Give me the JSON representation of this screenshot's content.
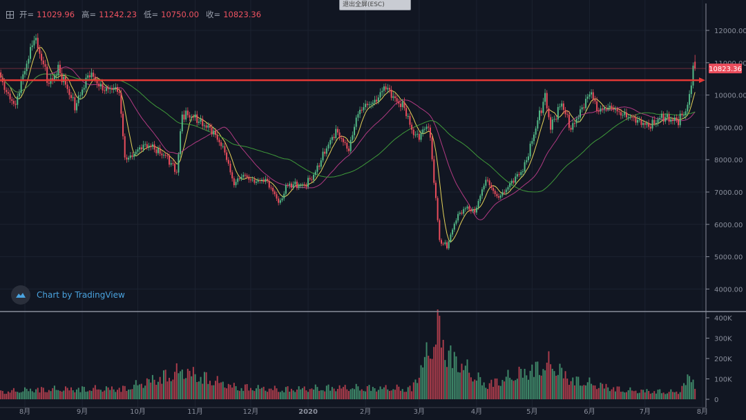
{
  "header": {
    "toggle_icon": "plus-square-icon",
    "open_label": "开=",
    "open": "11029.96",
    "high_label": "高=",
    "high": "11242.23",
    "low_label": "低=",
    "low": "10750.00",
    "close_label": "收=",
    "close": "10823.36",
    "exit_fullscreen": "退出全屏(ESC)"
  },
  "watermark": {
    "text": "Chart by TradingView",
    "icon": "tradingview-cloud-icon"
  },
  "colors": {
    "background": "#111622",
    "up": "#53b987",
    "down": "#eb4d5c",
    "ma_fast": "#e6d35a",
    "ma_mid": "#b23a83",
    "ma_slow": "#3f9a3a",
    "marker_line": "#e53935"
  },
  "chart_data": {
    "type": "candlestick",
    "price_axis": {
      "ticks": [
        "12000.00",
        "11000.00",
        "10000.00",
        "9000.00",
        "8000.00",
        "7000.00",
        "6000.00",
        "5000.00",
        "4000.00"
      ],
      "range": [
        3700,
        12300
      ]
    },
    "volume_axis": {
      "ticks": [
        "400K",
        "300K",
        "200K",
        "100K",
        "0"
      ],
      "range": [
        0,
        400000
      ]
    },
    "time_axis": {
      "ticks": [
        "8月",
        "9月",
        "10月",
        "11月",
        "12月",
        "2020",
        "2月",
        "3月",
        "4月",
        "5月",
        "6月",
        "7月",
        "8月"
      ]
    },
    "current_price_label": "10823.36",
    "horizontal_line_price": 10460,
    "moving_averages": [
      "fast",
      "mid",
      "slow"
    ],
    "close_series": [
      [
        "2019-07-18",
        10700
      ],
      [
        "2019-07-27",
        9600
      ],
      [
        "2019-08-06",
        11900
      ],
      [
        "2019-08-14",
        10300
      ],
      [
        "2019-08-19",
        10800
      ],
      [
        "2019-08-28",
        9700
      ],
      [
        "2019-09-05",
        10600
      ],
      [
        "2019-09-12",
        10300
      ],
      [
        "2019-09-21",
        10000
      ],
      [
        "2019-09-24",
        8100
      ],
      [
        "2019-09-30",
        8250
      ],
      [
        "2019-10-09",
        8450
      ],
      [
        "2019-10-16",
        8100
      ],
      [
        "2019-10-22",
        7600
      ],
      [
        "2019-10-25",
        9400
      ],
      [
        "2019-11-02",
        9300
      ],
      [
        "2019-11-09",
        8900
      ],
      [
        "2019-11-17",
        8350
      ],
      [
        "2019-11-22",
        7200
      ],
      [
        "2019-11-28",
        7500
      ],
      [
        "2019-12-09",
        7300
      ],
      [
        "2019-12-17",
        6700
      ],
      [
        "2019-12-20",
        7200
      ],
      [
        "2019-12-30",
        7200
      ],
      [
        "2020-01-04",
        7500
      ],
      [
        "2020-01-10",
        8300
      ],
      [
        "2020-01-16",
        8800
      ],
      [
        "2020-01-23",
        8400
      ],
      [
        "2020-01-27",
        9300
      ],
      [
        "2020-02-03",
        9700
      ],
      [
        "2020-02-11",
        10250
      ],
      [
        "2020-02-16",
        9850
      ],
      [
        "2020-02-22",
        9700
      ],
      [
        "2020-02-26",
        8900
      ],
      [
        "2020-02-29",
        8650
      ],
      [
        "2020-03-06",
        9100
      ],
      [
        "2020-03-08",
        8000
      ],
      [
        "2020-03-12",
        5500
      ],
      [
        "2020-03-16",
        5350
      ],
      [
        "2020-03-21",
        6150
      ],
      [
        "2020-03-27",
        6550
      ],
      [
        "2020-03-31",
        6450
      ],
      [
        "2020-04-06",
        7300
      ],
      [
        "2020-04-12",
        6900
      ],
      [
        "2020-04-17",
        7100
      ],
      [
        "2020-04-21",
        7300
      ],
      [
        "2020-04-26",
        7700
      ],
      [
        "2020-05-02",
        8800
      ],
      [
        "2020-05-08",
        9950
      ],
      [
        "2020-05-11",
        9000
      ],
      [
        "2020-05-17",
        9750
      ],
      [
        "2020-05-22",
        9000
      ],
      [
        "2020-05-28",
        9500
      ],
      [
        "2020-06-02",
        10150
      ],
      [
        "2020-06-05",
        9650
      ],
      [
        "2020-06-12",
        9500
      ],
      [
        "2020-06-20",
        9500
      ],
      [
        "2020-06-27",
        9100
      ],
      [
        "2020-07-03",
        9100
      ],
      [
        "2020-07-10",
        9300
      ],
      [
        "2020-07-19",
        9200
      ],
      [
        "2020-07-23",
        9500
      ],
      [
        "2020-07-25",
        9950
      ],
      [
        "2020-07-27",
        11000
      ],
      [
        "2020-07-28",
        10823.36
      ]
    ],
    "volume_series": [
      [
        "2019-07-18",
        40000
      ],
      [
        "2019-08-06",
        55000
      ],
      [
        "2019-09-24",
        60000
      ],
      [
        "2019-10-25",
        160000
      ],
      [
        "2019-11-22",
        70000
      ],
      [
        "2019-12-17",
        55000
      ],
      [
        "2020-01-16",
        65000
      ],
      [
        "2020-02-26",
        60000
      ],
      [
        "2020-03-12",
        400000
      ],
      [
        "2020-03-16",
        260000
      ],
      [
        "2020-04-06",
        80000
      ],
      [
        "2020-05-11",
        200000
      ],
      [
        "2020-05-22",
        110000
      ],
      [
        "2020-06-20",
        50000
      ],
      [
        "2020-07-19",
        40000
      ],
      [
        "2020-07-27",
        150000
      ],
      [
        "2020-07-28",
        60000
      ]
    ]
  }
}
